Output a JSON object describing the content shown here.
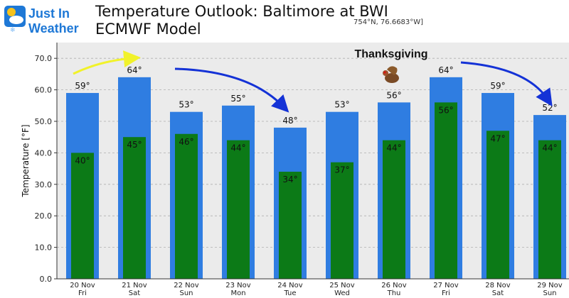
{
  "header": {
    "logo_line1": "Just In",
    "logo_line2": "Weather",
    "title_line1": "Temperature Outlook: Baltimore at BWI",
    "title_line2": "ECMWF Model",
    "coords": "754°N, 76.6683°W]"
  },
  "annotation": {
    "thanksgiving": "Thanksgiving"
  },
  "colors": {
    "high_bar": "#2f7de1",
    "low_bar": "#0c7a17",
    "plot_bg": "#ebebeb",
    "arrow_blue": "#1432d6",
    "arrow_yellow": "#f1f22a"
  },
  "chart_data": {
    "type": "bar",
    "ylabel": "Temperature [°F]",
    "xlabel": "",
    "ylim": [
      0,
      75
    ],
    "yticks": [
      "0.0",
      "10.0",
      "20.0",
      "30.0",
      "40.0",
      "50.0",
      "60.0",
      "70.0"
    ],
    "categories": [
      [
        "20 Nov",
        "Fri"
      ],
      [
        "21 Nov",
        "Sat"
      ],
      [
        "22 Nov",
        "Sun"
      ],
      [
        "23 Nov",
        "Mon"
      ],
      [
        "24 Nov",
        "Tue"
      ],
      [
        "25 Nov",
        "Wed"
      ],
      [
        "26 Nov",
        "Thu"
      ],
      [
        "27 Nov",
        "Fri"
      ],
      [
        "28 Nov",
        "Sat"
      ],
      [
        "29 Nov",
        "Sun"
      ]
    ],
    "series": [
      {
        "values": [
          59,
          64,
          53,
          55,
          48,
          53,
          56,
          64,
          59,
          52
        ],
        "labels": [
          "59°",
          "64°",
          "53°",
          "55°",
          "48°",
          "53°",
          "56°",
          "64°",
          "59°",
          "52°"
        ]
      },
      {
        "values": [
          40,
          45,
          46,
          44,
          34,
          37,
          44,
          56,
          47,
          44
        ],
        "labels": [
          "40°",
          "45°",
          "46°",
          "44°",
          "34°",
          "37°",
          "44°",
          "56°",
          "47°",
          "44°"
        ]
      }
    ],
    "grid": true
  }
}
